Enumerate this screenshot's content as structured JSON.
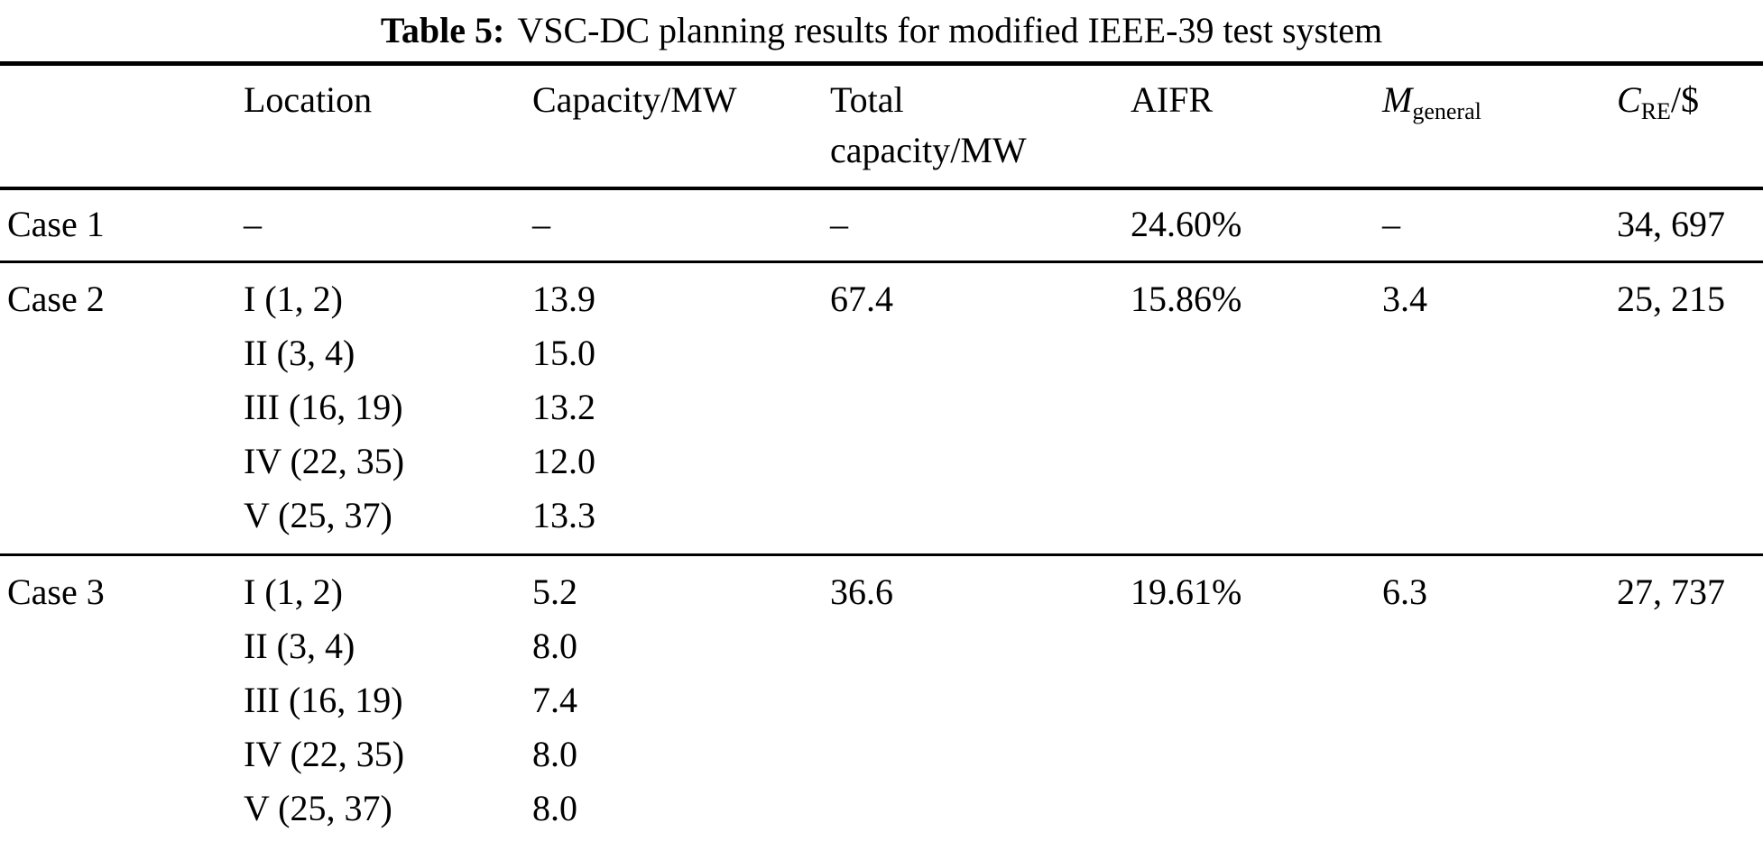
{
  "title": {
    "label": "Table 5:",
    "text": "VSC-DC planning results for modified IEEE-39 test system"
  },
  "columns": {
    "location": "Location",
    "capacity": "Capacity/MW",
    "total": "Total\ncapacity/MW",
    "aifr": "AIFR",
    "m": {
      "base": "M",
      "sub": "general"
    },
    "cre": {
      "base": "C",
      "sub": "RE",
      "suffix": "/$"
    }
  },
  "cases": [
    {
      "name": "Case 1",
      "locations": [
        "–"
      ],
      "capacities": [
        "–"
      ],
      "total": "–",
      "aifr": "24.60%",
      "m": "–",
      "cre": "34, 697"
    },
    {
      "name": "Case 2",
      "locations": [
        "I (1, 2)",
        "II (3, 4)",
        "III (16, 19)",
        "IV (22, 35)",
        "V (25, 37)"
      ],
      "capacities": [
        "13.9",
        "15.0",
        "13.2",
        "12.0",
        "13.3"
      ],
      "total": "67.4",
      "aifr": "15.86%",
      "m": "3.4",
      "cre": "25, 215"
    },
    {
      "name": "Case 3",
      "locations": [
        "I (1, 2)",
        "II (3, 4)",
        "III (16, 19)",
        "IV (22, 35)",
        "V (25, 37)"
      ],
      "capacities": [
        "5.2",
        "8.0",
        "7.4",
        "8.0",
        "8.0"
      ],
      "total": "36.6",
      "aifr": "19.61%",
      "m": "6.3",
      "cre": "27, 737"
    }
  ]
}
